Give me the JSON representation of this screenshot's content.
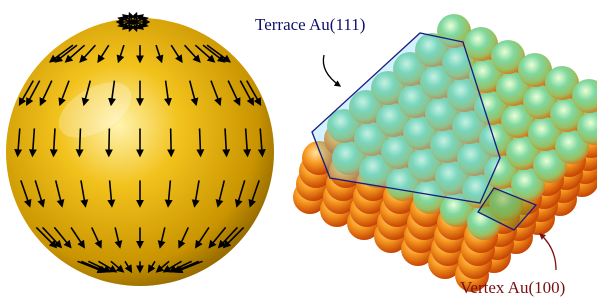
{
  "annotations": [
    {
      "label": "Terrace Au(111)"
    },
    {
      "label": "Vertex Au(100)"
    }
  ]
}
